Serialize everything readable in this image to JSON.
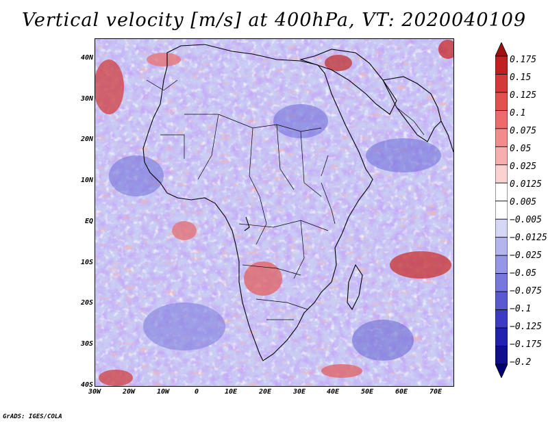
{
  "title": "Vertical velocity [m/s] at 400hPa, VT: 2020040109",
  "credit": "GrADS: IGES/COLA",
  "map": {
    "region": "Africa",
    "variable": "Vertical velocity",
    "units": "m/s",
    "level": "400hPa",
    "valid_time": "2020040109",
    "lat_labels": [
      "40N",
      "30N",
      "20N",
      "10N",
      "EQ",
      "10S",
      "20S",
      "30S",
      "40S"
    ],
    "lon_labels": [
      "30W",
      "20W",
      "10W",
      "0",
      "10E",
      "20E",
      "30E",
      "40E",
      "50E",
      "60E",
      "70E"
    ]
  },
  "colorbar": {
    "levels": [
      "0.175",
      "0.15",
      "0.125",
      "0.1",
      "0.075",
      "0.05",
      "0.025",
      "0.0125",
      "0.005",
      "−0.005",
      "−0.0125",
      "−0.025",
      "−0.05",
      "−0.075",
      "−0.1",
      "−0.125",
      "−0.175",
      "−0.2"
    ],
    "colors": [
      "#a01010",
      "#c02020",
      "#d43838",
      "#e25050",
      "#ec6c6c",
      "#f28c8c",
      "#f7aeae",
      "#fbd2d2",
      "#ffffff",
      "#ffffff",
      "#d6d6f6",
      "#b4b4ee",
      "#9696e6",
      "#7878dc",
      "#5a5ad0",
      "#3c3cc2",
      "#2222b0",
      "#10108c",
      "#000070"
    ]
  }
}
